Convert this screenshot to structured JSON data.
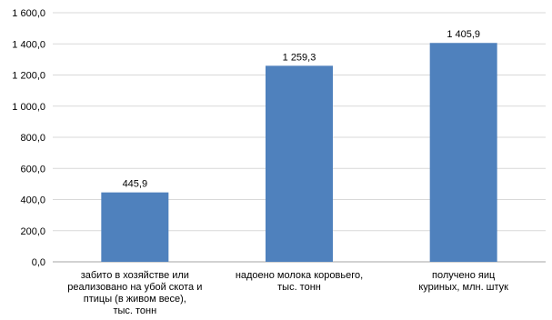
{
  "chart_data": {
    "type": "bar",
    "categories": [
      [
        "забито в хозяйстве или",
        "реализовано на убой скота и",
        "птицы (в живом весе),",
        "тыс. тонн"
      ],
      [
        "надоено молока коровьего,",
        "тыс. тонн"
      ],
      [
        "получено яиц",
        "куриных, млн. штук"
      ]
    ],
    "values": [
      445.9,
      1259.3,
      1405.9
    ],
    "value_labels": [
      "445,9",
      "1 259,3",
      "1 405,9"
    ],
    "yticks": [
      0,
      200,
      400,
      600,
      800,
      1000,
      1200,
      1400,
      1600
    ],
    "ytick_labels": [
      "0,0",
      "200,0",
      "400,0",
      "600,0",
      "800,0",
      "1 000,0",
      "1 200,0",
      "1 400,0",
      "1 600,0"
    ],
    "ylim": [
      0,
      1600
    ],
    "title": "",
    "xlabel": "",
    "ylabel": "",
    "grid": true,
    "legend": "none",
    "colors": {
      "bar": "#4f81bd",
      "grid": "#d9d9d9",
      "axis": "#a6a6a6",
      "text": "#000000"
    }
  }
}
